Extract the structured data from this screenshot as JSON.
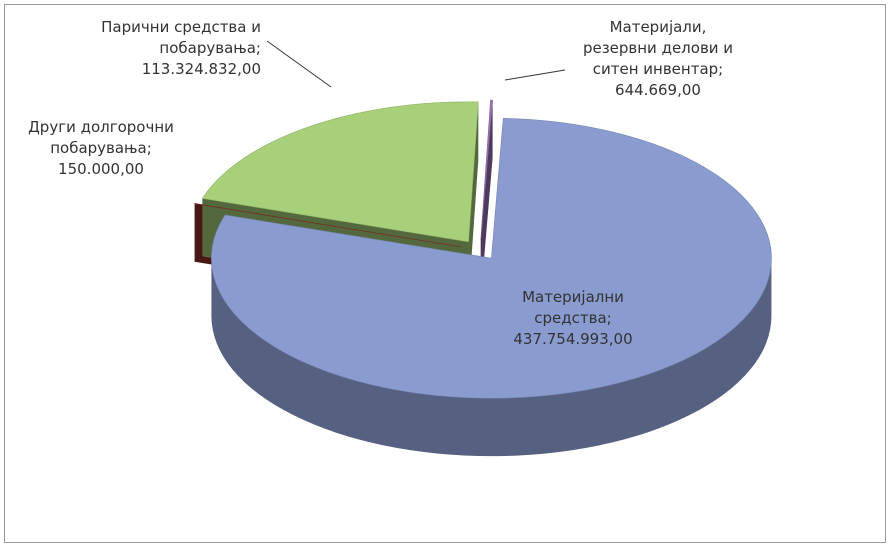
{
  "chart_data": {
    "type": "pie",
    "categories": [
      "Материјали, резервни делови и ситен инвентар;",
      "Материјални средства;",
      "Други долгорочни побарувања;",
      "Парични средства и побарувања;"
    ],
    "values": [
      644669,
      437754993,
      150000,
      113324832
    ],
    "value_labels": [
      "644.669,00",
      "437.754.993,00",
      "150.000,00",
      "113.324.832,00"
    ],
    "colors": [
      "#9b74b8",
      "#8a9bd0",
      "#8e2f28",
      "#a8d07a"
    ]
  }
}
